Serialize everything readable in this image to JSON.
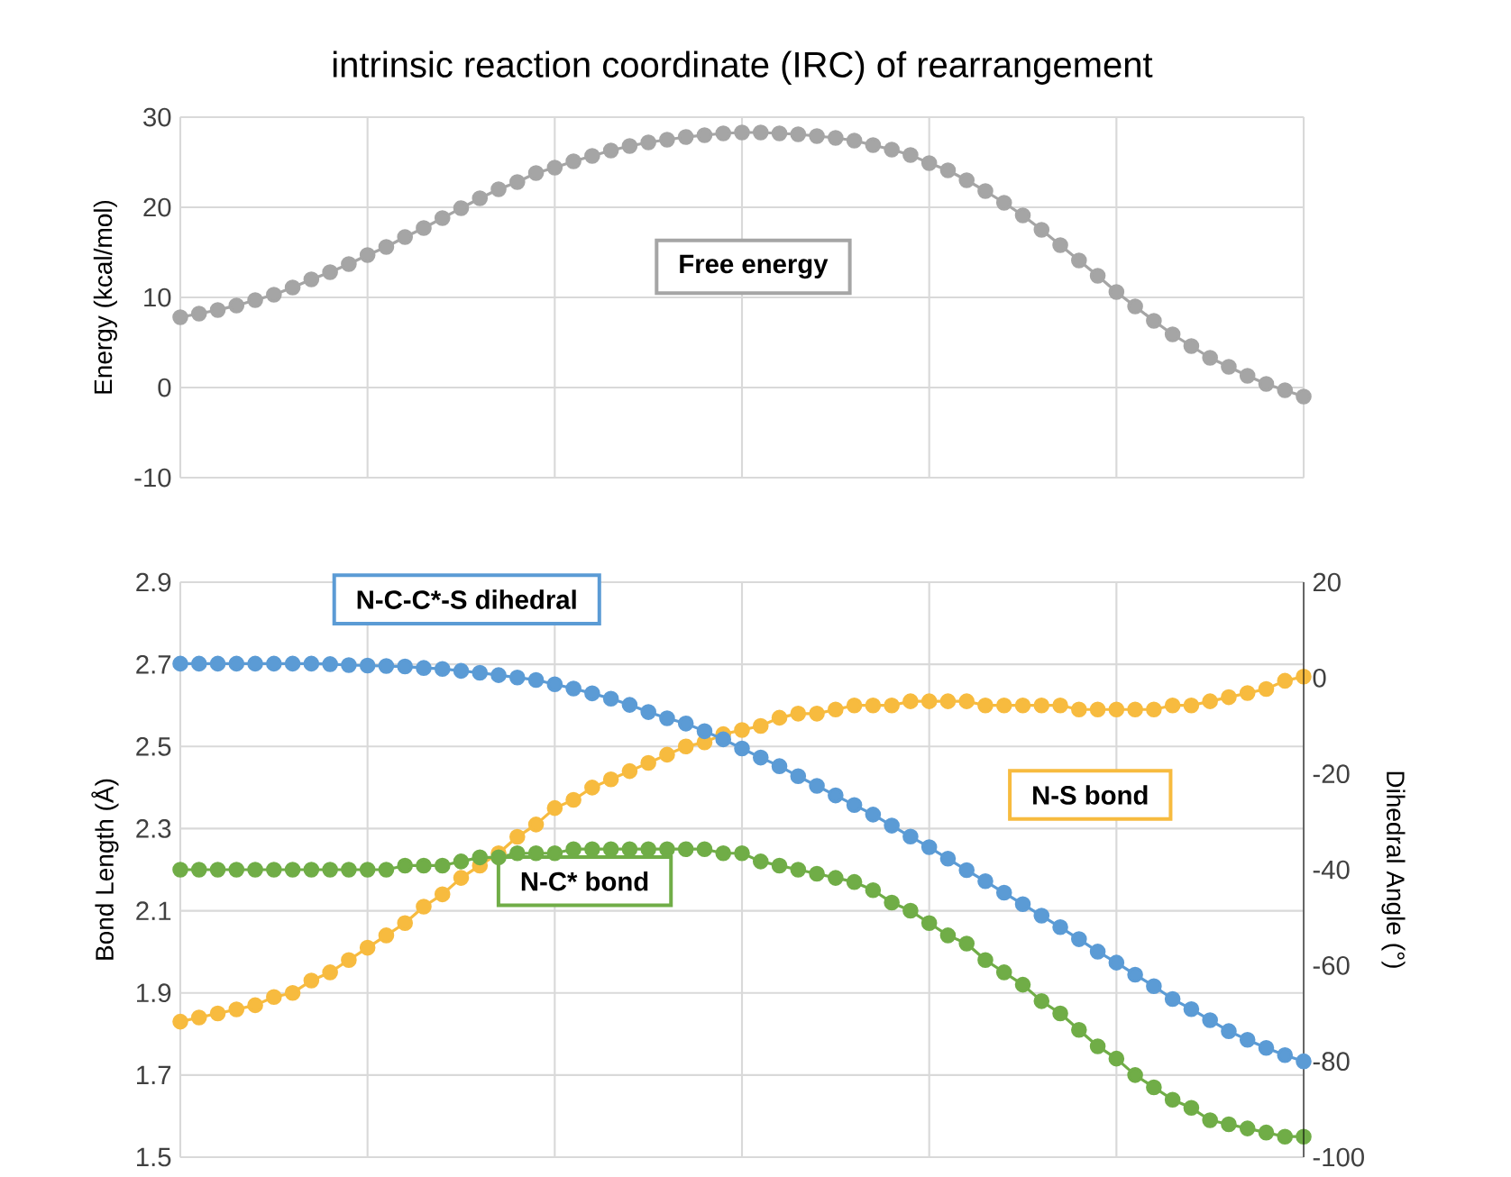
{
  "chart_data": [
    {
      "type": "line",
      "title": "intrinsic reaction coordinate (IRC) of rearrangement",
      "ylabel": "Energy (kcal/mol)",
      "categories": [
        null,
        null,
        null,
        null,
        null,
        null,
        null,
        null,
        null,
        null,
        null,
        null,
        null,
        null,
        null,
        null,
        null,
        null,
        null,
        null,
        null,
        null,
        null,
        null,
        null,
        null,
        null,
        null,
        null,
        null,
        null,
        null,
        null,
        null,
        null,
        null,
        null,
        null,
        null,
        null,
        null,
        null,
        null,
        null,
        null,
        null,
        null,
        null,
        null,
        null,
        null,
        null,
        null,
        null,
        null,
        null,
        null,
        null,
        null,
        null,
        null
      ],
      "ylim": [
        -10,
        30
      ],
      "yticks": [
        -10,
        0,
        10,
        20,
        30
      ],
      "grid": true,
      "tick_labels": "y",
      "marker": "circle",
      "series": [
        {
          "name": "Free energy",
          "color": "#a5a5a5",
          "values": [
            7.8,
            8.2,
            8.6,
            9.1,
            9.7,
            10.3,
            11.1,
            12.0,
            12.8,
            13.7,
            14.7,
            15.6,
            16.7,
            17.7,
            18.8,
            19.9,
            21.0,
            22.0,
            22.8,
            23.8,
            24.4,
            25.1,
            25.7,
            26.3,
            26.8,
            27.2,
            27.5,
            27.8,
            28.0,
            28.2,
            28.3,
            28.3,
            28.2,
            28.1,
            27.9,
            27.7,
            27.4,
            26.9,
            26.4,
            25.8,
            24.9,
            24.1,
            23.0,
            21.8,
            20.5,
            19.1,
            17.5,
            15.8,
            14.1,
            12.4,
            10.6,
            9.0,
            7.4,
            5.9,
            4.6,
            3.3,
            2.3,
            1.3,
            0.4,
            -0.3,
            -1.0
          ]
        }
      ]
    },
    {
      "type": "line",
      "ylabel": "Bond Length (Å)",
      "y2label": "Dihedral Angle (°)",
      "categories": [
        null,
        null,
        null,
        null,
        null,
        null,
        null,
        null,
        null,
        null,
        null,
        null,
        null,
        null,
        null,
        null,
        null,
        null,
        null,
        null,
        null,
        null,
        null,
        null,
        null,
        null,
        null,
        null,
        null,
        null,
        null,
        null,
        null,
        null,
        null,
        null,
        null,
        null,
        null,
        null,
        null,
        null,
        null,
        null,
        null,
        null,
        null,
        null,
        null,
        null,
        null,
        null,
        null,
        null,
        null,
        null,
        null,
        null,
        null,
        null,
        null
      ],
      "ylim": [
        1.5,
        2.9
      ],
      "yticks": [
        1.5,
        1.7,
        1.9,
        2.1,
        2.3,
        2.5,
        2.7,
        2.9
      ],
      "y2lim": [
        -100,
        20
      ],
      "y2ticks": [
        -100,
        -80,
        -60,
        -40,
        -20,
        0,
        20
      ],
      "grid": true,
      "tick_labels": "y",
      "marker": "circle",
      "series": [
        {
          "name": "N-C-C*-S dihedral",
          "color": "#5b9bd5",
          "axis": "y2",
          "values": [
            3.0,
            3.0,
            3.0,
            3.0,
            3.0,
            3.0,
            3.0,
            3.0,
            2.9,
            2.7,
            2.6,
            2.5,
            2.4,
            2.1,
            1.9,
            1.5,
            1.1,
            0.6,
            0.1,
            -0.4,
            -1.3,
            -2.2,
            -3.2,
            -4.3,
            -5.6,
            -7.1,
            -8.4,
            -9.5,
            -11.1,
            -12.8,
            -14.7,
            -16.6,
            -18.4,
            -20.5,
            -22.5,
            -24.5,
            -26.5,
            -28.5,
            -30.8,
            -33.1,
            -35.3,
            -37.7,
            -40.1,
            -42.4,
            -44.8,
            -47.2,
            -49.6,
            -52.0,
            -54.5,
            -57.1,
            -59.4,
            -61.9,
            -64.3,
            -67.0,
            -69.1,
            -71.4,
            -73.7,
            -75.5,
            -77.2,
            -78.7,
            -80.0
          ]
        },
        {
          "name": "N-S bond",
          "color": "#f7bb3f",
          "values": [
            1.83,
            1.84,
            1.85,
            1.86,
            1.87,
            1.89,
            1.9,
            1.93,
            1.95,
            1.98,
            2.01,
            2.04,
            2.07,
            2.11,
            2.14,
            2.18,
            2.21,
            2.24,
            2.28,
            2.31,
            2.35,
            2.37,
            2.4,
            2.42,
            2.44,
            2.46,
            2.48,
            2.5,
            2.51,
            2.53,
            2.54,
            2.55,
            2.57,
            2.58,
            2.58,
            2.59,
            2.6,
            2.6,
            2.6,
            2.61,
            2.61,
            2.61,
            2.61,
            2.6,
            2.6,
            2.6,
            2.6,
            2.6,
            2.59,
            2.59,
            2.59,
            2.59,
            2.59,
            2.6,
            2.6,
            2.61,
            2.62,
            2.63,
            2.64,
            2.66,
            2.67
          ]
        },
        {
          "name": "N-C* bond",
          "color": "#70ad47",
          "values": [
            2.2,
            2.2,
            2.2,
            2.2,
            2.2,
            2.2,
            2.2,
            2.2,
            2.2,
            2.2,
            2.2,
            2.2,
            2.21,
            2.21,
            2.21,
            2.22,
            2.23,
            2.23,
            2.24,
            2.24,
            2.24,
            2.25,
            2.25,
            2.25,
            2.25,
            2.25,
            2.25,
            2.25,
            2.25,
            2.24,
            2.24,
            2.22,
            2.21,
            2.2,
            2.19,
            2.18,
            2.17,
            2.15,
            2.12,
            2.1,
            2.07,
            2.04,
            2.02,
            1.98,
            1.95,
            1.92,
            1.88,
            1.85,
            1.81,
            1.77,
            1.74,
            1.7,
            1.67,
            1.64,
            1.62,
            1.59,
            1.58,
            1.57,
            1.56,
            1.55,
            1.55
          ]
        }
      ]
    }
  ]
}
